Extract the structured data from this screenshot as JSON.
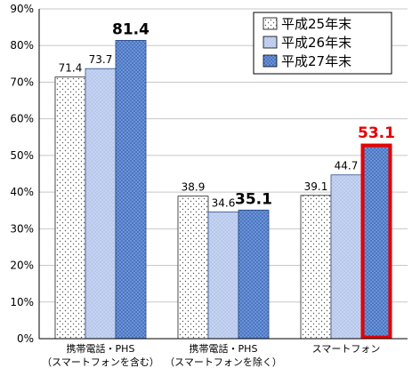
{
  "chart_data": {
    "type": "bar",
    "categories": [
      [
        "携帯電話・PHS",
        "（スマートフォンを含む）"
      ],
      [
        "携帯電話・PHS",
        "（スマートフォンを除く）"
      ],
      [
        "スマートフォン"
      ]
    ],
    "series": [
      {
        "name": "平成25年末",
        "values": [
          71.4,
          38.9,
          39.1
        ]
      },
      {
        "name": "平成26年末",
        "values": [
          73.7,
          34.6,
          44.7
        ]
      },
      {
        "name": "平成27年末",
        "values": [
          81.4,
          35.1,
          53.1
        ]
      }
    ],
    "value_labels": [
      [
        "71.4",
        "38.9",
        "39.1"
      ],
      [
        "73.7",
        "34.6",
        "44.7"
      ],
      [
        "81.4",
        "35.1",
        "53.1"
      ]
    ],
    "highlight": {
      "series": 2,
      "category": 2,
      "color": "#e60000"
    },
    "yticks": [
      "0%",
      "10%",
      "20%",
      "30%",
      "40%",
      "50%",
      "60%",
      "70%",
      "80%",
      "90%"
    ],
    "ylim": [
      0,
      90
    ],
    "grid": true,
    "legend_position": "top-right",
    "colors": {
      "series0": "#ffffff",
      "series1": "#b7c8ec",
      "series2": "#4a77c6",
      "grid": "#c8c8c8"
    }
  }
}
